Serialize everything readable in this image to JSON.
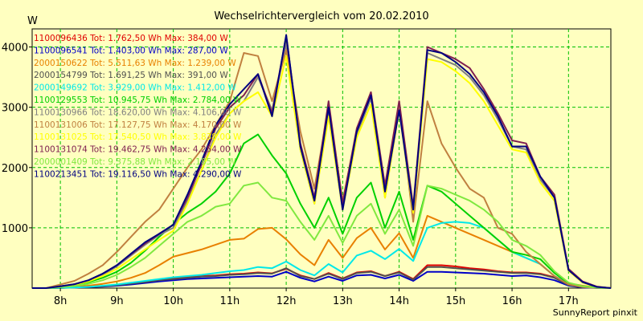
{
  "chart_data": {
    "type": "line",
    "title": "Wechselrichtervergleich vom 20.02.2010",
    "ylabel": "W",
    "credit": "SunnyReport pinxit",
    "x": [
      7.5,
      7.75,
      8.0,
      8.25,
      8.5,
      8.75,
      9.0,
      9.25,
      9.5,
      9.75,
      10.0,
      10.25,
      10.5,
      10.75,
      11.0,
      11.25,
      11.5,
      11.75,
      12.0,
      12.25,
      12.5,
      12.75,
      13.0,
      13.25,
      13.5,
      13.75,
      14.0,
      14.25,
      14.5,
      14.75,
      15.0,
      15.25,
      15.5,
      15.75,
      16.0,
      16.25,
      16.5,
      16.75,
      17.0,
      17.25,
      17.5,
      17.75
    ],
    "xlim": [
      7.5,
      17.75
    ],
    "ylim": [
      0,
      4300
    ],
    "x_ticks": [
      {
        "v": 8,
        "label": "8h"
      },
      {
        "v": 9,
        "label": "9h"
      },
      {
        "v": 10,
        "label": "10h"
      },
      {
        "v": 11,
        "label": "11h"
      },
      {
        "v": 12,
        "label": "12h"
      },
      {
        "v": 13,
        "label": "13h"
      },
      {
        "v": 14,
        "label": "14h"
      },
      {
        "v": 15,
        "label": "15h"
      },
      {
        "v": 16,
        "label": "16h"
      },
      {
        "v": 17,
        "label": "17h"
      }
    ],
    "y_ticks": [
      {
        "v": 1000,
        "label": "1000"
      },
      {
        "v": 2000,
        "label": "2000"
      },
      {
        "v": 3000,
        "label": "3000"
      },
      {
        "v": 4000,
        "label": "4000"
      }
    ],
    "grid": true,
    "legend_position": "top-left",
    "series": [
      {
        "name": "1100096436 Tot: 1.762,50 Wh Max: 384,00 W",
        "color": "#E00000",
        "values": [
          0,
          0,
          5,
          10,
          20,
          35,
          55,
          80,
          110,
          140,
          160,
          180,
          200,
          210,
          230,
          240,
          260,
          245,
          320,
          210,
          150,
          250,
          160,
          260,
          280,
          200,
          270,
          150,
          380,
          380,
          360,
          330,
          310,
          280,
          260,
          260,
          240,
          180,
          60,
          20,
          5,
          0
        ]
      },
      {
        "name": "1100096541 Tot: 1.403,00 Wh Max: 287,00 W",
        "color": "#0000C8",
        "values": [
          0,
          0,
          3,
          8,
          15,
          25,
          40,
          60,
          85,
          110,
          130,
          150,
          160,
          170,
          180,
          190,
          200,
          190,
          270,
          170,
          110,
          190,
          120,
          210,
          220,
          160,
          220,
          120,
          270,
          270,
          260,
          250,
          240,
          220,
          200,
          210,
          180,
          130,
          40,
          10,
          3,
          0
        ]
      },
      {
        "name": "2000150622 Tot: 5.511,63 Wh Max: 1.239,00 W",
        "color": "#E88000",
        "values": [
          0,
          0,
          10,
          20,
          40,
          70,
          110,
          170,
          250,
          380,
          520,
          580,
          640,
          720,
          800,
          820,
          980,
          1000,
          810,
          560,
          380,
          800,
          500,
          830,
          1000,
          640,
          910,
          500,
          1200,
          1100,
          1000,
          900,
          800,
          700,
          600,
          500,
          400,
          200,
          80,
          40,
          10,
          0
        ]
      },
      {
        "name": "2000154799 Tot: 1.691,25 Wh Max: 391,00 W",
        "color": "#505050",
        "values": [
          0,
          0,
          4,
          9,
          18,
          30,
          50,
          75,
          100,
          130,
          150,
          170,
          190,
          200,
          220,
          230,
          250,
          240,
          330,
          200,
          150,
          240,
          150,
          250,
          270,
          200,
          260,
          140,
          350,
          350,
          330,
          310,
          290,
          270,
          250,
          250,
          230,
          170,
          50,
          15,
          4,
          0
        ]
      },
      {
        "name": "2000149692 Tot: 3.929,00 Wh Max: 1.412,00 W",
        "color": "#00E8E8",
        "values": [
          0,
          0,
          5,
          10,
          20,
          40,
          60,
          90,
          120,
          150,
          180,
          200,
          220,
          250,
          280,
          300,
          350,
          330,
          440,
          300,
          210,
          400,
          260,
          540,
          620,
          480,
          650,
          450,
          1000,
          1080,
          1100,
          1080,
          1000,
          800,
          600,
          500,
          400,
          200,
          80,
          30,
          5,
          0
        ]
      },
      {
        "name": "1100129553 Tot: 10.945,75 Wh Max: 2.784,00 W",
        "color": "#00D000",
        "values": [
          0,
          0,
          20,
          50,
          100,
          170,
          270,
          420,
          620,
          850,
          1060,
          1250,
          1400,
          1600,
          1900,
          2400,
          2550,
          2200,
          1900,
          1400,
          1000,
          1500,
          900,
          1500,
          1750,
          1000,
          1600,
          800,
          1700,
          1600,
          1400,
          1200,
          1000,
          800,
          600,
          550,
          480,
          250,
          80,
          30,
          10,
          0
        ]
      },
      {
        "name": "1100130966 Tot: 18.620,00 Wh Max: 4.106,00 W",
        "color": "#808080",
        "values": [
          0,
          0,
          30,
          60,
          120,
          220,
          360,
          540,
          720,
          880,
          1000,
          1450,
          1950,
          2550,
          2900,
          3100,
          3500,
          2950,
          4050,
          2300,
          1400,
          2900,
          1300,
          2550,
          3150,
          1600,
          3000,
          1300,
          3900,
          3800,
          3700,
          3500,
          3200,
          2800,
          2350,
          2300,
          1800,
          1500,
          300,
          100,
          20,
          0
        ]
      },
      {
        "name": "1100131006 Tot: 17.127,75 Wh Max: 4.170,00 W",
        "color": "#C08040",
        "values": [
          0,
          0,
          60,
          120,
          240,
          380,
          600,
          850,
          1100,
          1300,
          1650,
          2000,
          2300,
          2700,
          3100,
          3900,
          3850,
          3100,
          3950,
          2600,
          1650,
          3000,
          1450,
          2600,
          3250,
          1500,
          3100,
          1100,
          3100,
          2400,
          2000,
          1650,
          1500,
          1000,
          900,
          600,
          400,
          200,
          60,
          20,
          5,
          0
        ]
      },
      {
        "name": "1100131025 Tot: 17.540,50 Wh Max: 3.838,00 W",
        "color": "#FFFF00",
        "values": [
          0,
          0,
          25,
          55,
          110,
          200,
          320,
          480,
          640,
          800,
          950,
          1400,
          1950,
          2500,
          2900,
          3100,
          3250,
          2850,
          3850,
          2300,
          1400,
          2850,
          1300,
          2500,
          3050,
          1500,
          2950,
          1250,
          3800,
          3750,
          3600,
          3400,
          3100,
          2700,
          2300,
          2250,
          1750,
          1450,
          290,
          90,
          20,
          0
        ]
      },
      {
        "name": "1100131074 Tot: 19.462,75 Wh Max: 4.254,00 W",
        "color": "#802050",
        "values": [
          0,
          0,
          30,
          65,
          130,
          240,
          380,
          560,
          740,
          900,
          1050,
          1500,
          2050,
          2650,
          3000,
          3200,
          3550,
          2900,
          4180,
          2400,
          1500,
          3100,
          1400,
          2650,
          3250,
          1700,
          3100,
          1350,
          4000,
          3900,
          3800,
          3650,
          3300,
          2900,
          2450,
          2400,
          1850,
          1550,
          320,
          110,
          25,
          0
        ]
      },
      {
        "name": "2000001409 Tot: 9.375,88 Wh Max: 2.185,00 W",
        "color": "#80E840",
        "values": [
          0,
          0,
          15,
          35,
          70,
          130,
          220,
          350,
          500,
          700,
          900,
          1100,
          1200,
          1350,
          1400,
          1700,
          1750,
          1500,
          1450,
          1100,
          800,
          1200,
          750,
          1200,
          1400,
          900,
          1300,
          700,
          1700,
          1650,
          1550,
          1450,
          1300,
          1100,
          800,
          700,
          550,
          280,
          90,
          30,
          8,
          0
        ]
      },
      {
        "name": "1100213451 Tot: 19.116,50 Wh Max: 4.290,00 W",
        "color": "#000080",
        "values": [
          0,
          0,
          30,
          65,
          130,
          240,
          380,
          570,
          760,
          900,
          1050,
          1550,
          2100,
          2700,
          3050,
          3300,
          3550,
          2850,
          4200,
          2350,
          1450,
          3000,
          1300,
          2600,
          3200,
          1600,
          2950,
          1300,
          3950,
          3900,
          3750,
          3550,
          3250,
          2850,
          2350,
          2350,
          1850,
          1500,
          300,
          100,
          20,
          0
        ]
      }
    ]
  }
}
